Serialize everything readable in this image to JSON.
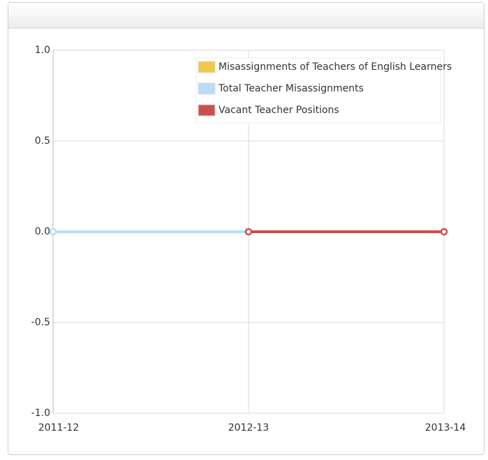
{
  "chart_data": {
    "type": "line",
    "categories": [
      "2011-12",
      "2012-13",
      "2013-14"
    ],
    "series": [
      {
        "name": "Misassignments of Teachers of English Learners",
        "color": "#f2c84b",
        "values": [
          0,
          0,
          0
        ]
      },
      {
        "name": "Total Teacher Misassignments",
        "color": "#b9ddf6",
        "values": [
          0,
          0,
          0
        ]
      },
      {
        "name": "Vacant Teacher Positions",
        "color": "#cc4f4f",
        "values": [
          null,
          0,
          0
        ]
      }
    ],
    "ylim": [
      -1,
      1
    ],
    "yticks": [
      {
        "value": -1,
        "label": "-1.0"
      },
      -0.5,
      {
        "value": 0,
        "label": "0.0"
      },
      0.5,
      {
        "value": 1,
        "label": "1.0"
      }
    ],
    "grid": true,
    "legend": "top-right"
  }
}
